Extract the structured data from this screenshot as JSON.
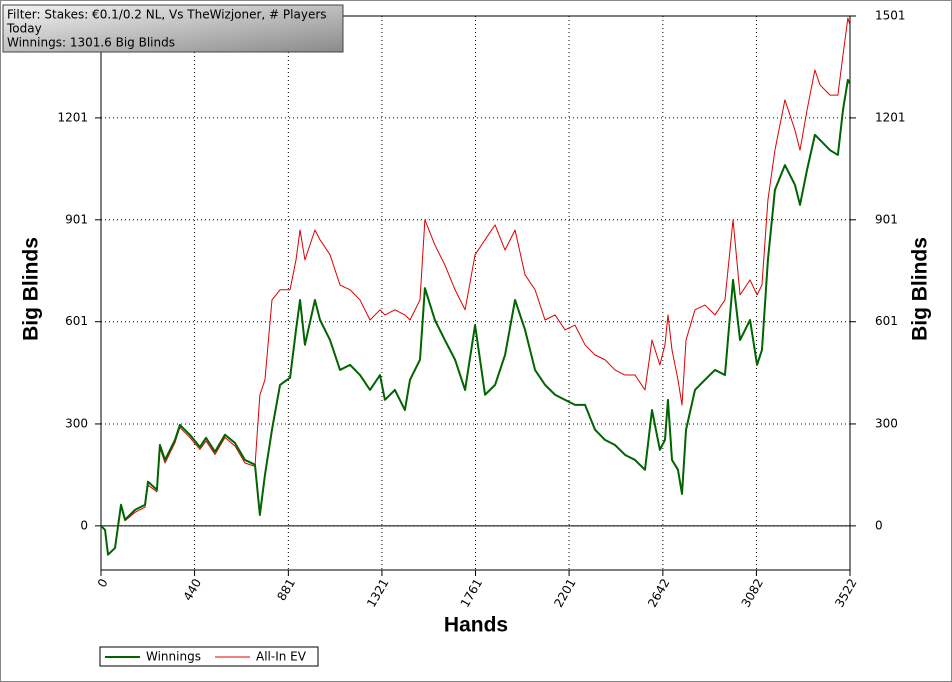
{
  "chart_data": {
    "type": "line",
    "annotations": [
      "Filter: Stakes: €0.1/0.2 NL, Vs TheWizjoner, # Players",
      "Today",
      "Winnings: 1301.6 Big Blinds"
    ],
    "xlabel": "Hands",
    "ylabel": "Big Blinds",
    "y2label": "Big Blinds",
    "xlim": [
      0,
      3522
    ],
    "xticks": [
      0,
      440,
      881,
      1321,
      1761,
      2201,
      2642,
      3082,
      3522
    ],
    "ylim": [
      -130,
      1501
    ],
    "yticks": [
      0,
      300,
      601,
      901,
      1201,
      1501
    ],
    "y2lim": [
      -130,
      1501
    ],
    "y2ticks": [
      0,
      300,
      601,
      901,
      1201,
      1501
    ],
    "grid": true,
    "legend": "bottom-left",
    "x": [
      0,
      19,
      33,
      66,
      94,
      113,
      160,
      207,
      221,
      263,
      277,
      301,
      348,
      371,
      418,
      465,
      494,
      536,
      583,
      630,
      677,
      724,
      747,
      771,
      804,
      842,
      889,
      917,
      936,
      959,
      1006,
      1030,
      1077,
      1124,
      1171,
      1218,
      1265,
      1312,
      1335,
      1382,
      1429,
      1453,
      1500,
      1523,
      1570,
      1617,
      1665,
      1712,
      1759,
      1806,
      1853,
      1900,
      1947,
      1994,
      2041,
      2088,
      2135,
      2182,
      2229,
      2276,
      2323,
      2370,
      2417,
      2464,
      2511,
      2558,
      2591,
      2628,
      2652,
      2666,
      2685,
      2713,
      2732,
      2751,
      2793,
      2840,
      2887,
      2934,
      2972,
      3005,
      3052,
      3085,
      3108,
      3136,
      3169,
      3216,
      3263,
      3287,
      3320,
      3357,
      3381,
      3428,
      3465,
      3489,
      3512,
      3522
    ],
    "series": [
      {
        "name": "Winnings",
        "color": "#006400",
        "values": [
          0,
          -12,
          -85,
          -65,
          62,
          18,
          47,
          62,
          130,
          106,
          238,
          194,
          253,
          297,
          268,
          232,
          259,
          218,
          268,
          244,
          194,
          180,
          32,
          150,
          283,
          415,
          436,
          577,
          665,
          533,
          665,
          606,
          547,
          459,
          474,
          444,
          400,
          444,
          371,
          400,
          341,
          430,
          489,
          700,
          606,
          547,
          489,
          400,
          591,
          386,
          415,
          503,
          665,
          577,
          459,
          415,
          386,
          371,
          356,
          356,
          283,
          253,
          238,
          209,
          194,
          165,
          341,
          224,
          253,
          371,
          194,
          165,
          94,
          283,
          400,
          430,
          459,
          444,
          724,
          547,
          606,
          474,
          518,
          783,
          989,
          1062,
          1004,
          945,
          1048,
          1151,
          1136,
          1106,
          1092,
          1224,
          1313,
          1302
        ]
      },
      {
        "name": "All-In EV",
        "color": "#dd0000",
        "values": [
          0,
          -12,
          -85,
          -65,
          55,
          15,
          40,
          55,
          120,
          100,
          230,
          185,
          245,
          290,
          260,
          225,
          250,
          210,
          260,
          235,
          185,
          175,
          385,
          430,
          665,
          695,
          695,
          783,
          871,
          783,
          871,
          842,
          798,
          709,
          695,
          665,
          606,
          636,
          621,
          636,
          621,
          606,
          665,
          901,
          827,
          768,
          695,
          636,
          798,
          842,
          886,
          812,
          871,
          739,
          695,
          606,
          621,
          577,
          591,
          533,
          503,
          489,
          459,
          444,
          444,
          400,
          547,
          474,
          533,
          621,
          518,
          430,
          356,
          547,
          636,
          650,
          621,
          665,
          901,
          680,
          724,
          680,
          709,
          959,
          1106,
          1254,
          1165,
          1106,
          1224,
          1342,
          1298,
          1268,
          1268,
          1386,
          1495,
          1474
        ]
      }
    ]
  }
}
